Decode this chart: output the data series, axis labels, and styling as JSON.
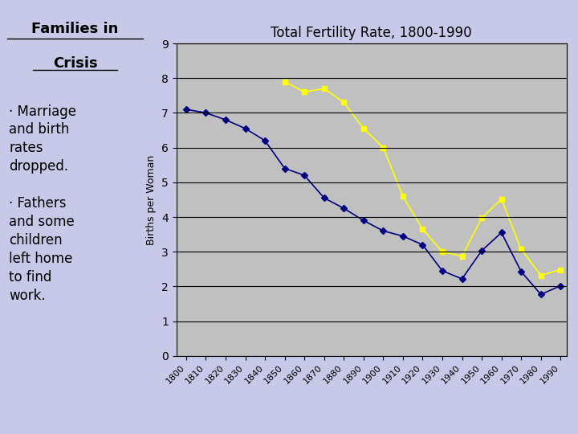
{
  "title": "Total Fertility Rate, 1800-1990",
  "ylabel": "Births per Woman",
  "bg_color": "#c8c8e8",
  "plot_bg_color": "#c0c0c0",
  "white_years": [
    1800,
    1810,
    1820,
    1830,
    1840,
    1850,
    1860,
    1870,
    1880,
    1890,
    1900,
    1910,
    1920,
    1930,
    1940,
    1950,
    1960,
    1970,
    1980,
    1990
  ],
  "white_values": [
    7.1,
    7.0,
    6.8,
    6.55,
    6.2,
    5.4,
    5.2,
    4.55,
    4.25,
    3.9,
    3.6,
    3.45,
    3.2,
    2.45,
    2.22,
    3.03,
    3.55,
    2.43,
    1.77,
    2.02
  ],
  "black_years": [
    1850,
    1860,
    1870,
    1880,
    1890,
    1900,
    1910,
    1920,
    1930,
    1940,
    1950,
    1960,
    1970,
    1980,
    1990
  ],
  "black_values": [
    7.9,
    7.6,
    7.7,
    7.3,
    6.55,
    6.0,
    4.6,
    3.65,
    3.0,
    2.87,
    3.97,
    4.52,
    3.07,
    2.32,
    2.48
  ],
  "white_color": "#000080",
  "black_color": "#ffff00",
  "ylim": [
    0,
    9
  ],
  "yticks": [
    0,
    1,
    2,
    3,
    4,
    5,
    6,
    7,
    8,
    9
  ],
  "left_panel_bg": "#c8c8e8",
  "title_fontsize": 12,
  "axis_fontsize": 9
}
